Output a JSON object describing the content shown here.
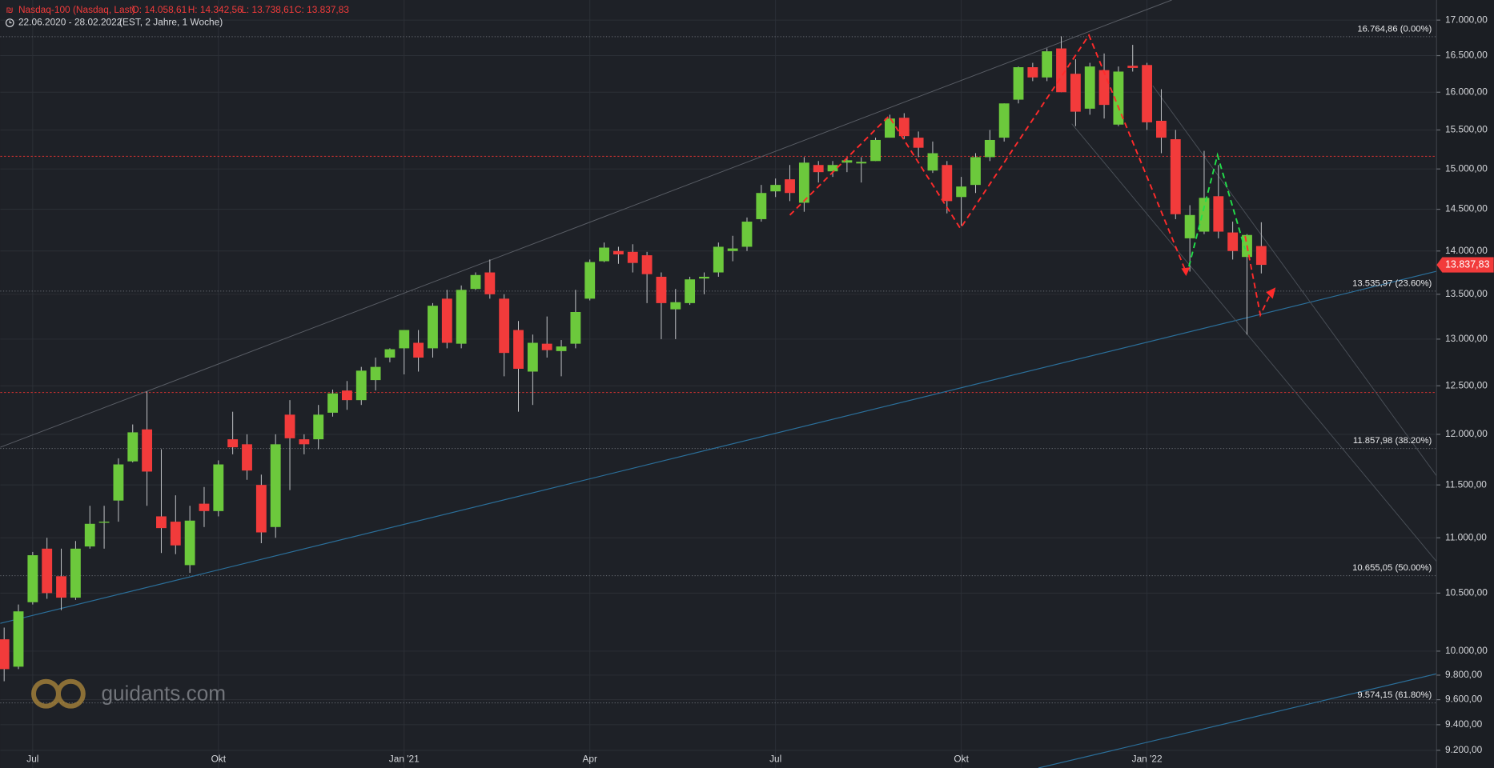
{
  "header": {
    "title": "Nasdaq-100 (Nasdaq, Last)",
    "ohlc": [
      "O: 14.058,61",
      "H: 14.342,56",
      "L: 13.738,61",
      "C: 13.837,83"
    ],
    "range": "22.06.2020 - 28.02.2022",
    "info": "(EST, 2 Jahre, 1 Woche)"
  },
  "watermark": "guidants.com",
  "chart_data": {
    "type": "candlestick",
    "x": [
      0,
      1,
      2,
      3,
      4,
      5,
      6,
      7,
      8,
      9,
      10,
      11,
      12,
      13,
      14,
      15,
      16,
      17,
      18,
      19,
      20,
      21,
      22,
      23,
      24,
      25,
      26,
      27,
      28,
      29,
      30,
      31,
      32,
      33,
      34,
      35,
      36,
      37,
      38,
      39,
      40,
      41,
      42,
      43,
      44,
      45,
      46,
      47,
      48,
      49,
      50,
      51,
      52,
      53,
      54,
      55,
      56,
      57,
      58,
      59,
      60,
      61,
      62,
      63,
      64,
      65,
      66,
      67,
      68,
      69,
      70,
      71,
      72,
      73,
      74,
      75,
      76,
      77,
      78,
      79,
      80,
      81,
      82,
      83,
      84,
      85,
      86,
      87,
      88
    ],
    "open": [
      10100,
      9870,
      10420,
      10900,
      10650,
      10460,
      10920,
      11140,
      11350,
      11730,
      12050,
      11200,
      11150,
      10750,
      11320,
      11250,
      11950,
      11900,
      11500,
      11100,
      12200,
      11950,
      11950,
      12220,
      12450,
      12350,
      12560,
      12800,
      12900,
      12960,
      12900,
      13450,
      12950,
      13560,
      13750,
      13450,
      13100,
      12650,
      12950,
      12870,
      12950,
      13450,
      13880,
      14000,
      13990,
      13950,
      13700,
      13330,
      13400,
      13680,
      13750,
      14000,
      14050,
      14380,
      14720,
      14870,
      14580,
      15050,
      14970,
      15080,
      15070,
      15100,
      15400,
      15660,
      15400,
      14980,
      15050,
      14650,
      14800,
      15150,
      15400,
      15900,
      16340,
      16200,
      16600,
      16250,
      15780,
      16300,
      15570,
      16360,
      16370,
      15620,
      15380,
      14150,
      14230,
      14660,
      14220,
      13930,
      14058.61
    ],
    "high": [
      10200,
      10400,
      10870,
      11000,
      10900,
      10970,
      11300,
      11300,
      11760,
      12100,
      12440,
      11850,
      11400,
      11300,
      11480,
      11740,
      12230,
      12000,
      11600,
      12000,
      12350,
      12000,
      12300,
      12460,
      12550,
      12700,
      12800,
      12900,
      13100,
      13100,
      13400,
      13550,
      13600,
      13750,
      13900,
      13500,
      13200,
      13050,
      13250,
      12990,
      13550,
      13900,
      14100,
      14050,
      14080,
      13990,
      13750,
      13560,
      13700,
      13750,
      14100,
      14180,
      14400,
      14800,
      14880,
      15050,
      15150,
      15100,
      15100,
      15150,
      15150,
      15400,
      15700,
      15720,
      15480,
      15350,
      15100,
      14900,
      15200,
      15500,
      15850,
      16350,
      16400,
      16600,
      16770,
      16450,
      16400,
      16530,
      16350,
      16650,
      16400,
      16040,
      15500,
      14550,
      15230,
      15050,
      14350,
      14200,
      14342.56
    ],
    "low": [
      9750,
      9850,
      10400,
      10450,
      10350,
      10440,
      10900,
      10900,
      11150,
      11720,
      11300,
      10860,
      10850,
      10680,
      11100,
      11200,
      11800,
      11550,
      10950,
      11000,
      11450,
      11800,
      11850,
      12180,
      12250,
      12300,
      12450,
      12750,
      12620,
      12650,
      12800,
      12900,
      12900,
      13550,
      13450,
      12600,
      12230,
      12300,
      12800,
      12600,
      12900,
      13430,
      13870,
      13850,
      13750,
      13400,
      13000,
      13000,
      13380,
      13500,
      13700,
      13880,
      14000,
      14350,
      14650,
      14600,
      14470,
      14830,
      14900,
      14960,
      14830,
      15100,
      15400,
      15380,
      15150,
      14950,
      14450,
      14300,
      14700,
      15100,
      15350,
      15850,
      16150,
      16150,
      16000,
      15550,
      15700,
      15650,
      15550,
      16280,
      15500,
      15200,
      14380,
      13760,
      14200,
      14150,
      13900,
      13050,
      13738.61
    ],
    "close": [
      9850,
      10340,
      10840,
      10500,
      10460,
      10900,
      11130,
      11150,
      11700,
      12020,
      11630,
      11090,
      10930,
      11160,
      11250,
      11700,
      11870,
      11640,
      11050,
      11900,
      11960,
      11900,
      12200,
      12420,
      12350,
      12660,
      12700,
      12890,
      13100,
      12800,
      13370,
      12960,
      13550,
      13720,
      13500,
      12850,
      12680,
      12960,
      12880,
      12920,
      13300,
      13870,
      14040,
      13960,
      13860,
      13730,
      13400,
      13410,
      13670,
      13700,
      14050,
      14030,
      14350,
      14700,
      14800,
      14700,
      15080,
      14960,
      15050,
      15110,
      15090,
      15370,
      15650,
      15420,
      15270,
      15200,
      14600,
      14780,
      15150,
      15370,
      15850,
      16340,
      16200,
      16560,
      16000,
      15740,
      16350,
      15830,
      16280,
      16330,
      15600,
      15400,
      14440,
      14430,
      14640,
      14230,
      14000,
      14190,
      13837.83
    ],
    "up_color": "#6cc93c",
    "down_color": "#f23b3b",
    "xlim": [
      -0.27,
      100.27
    ],
    "xticks": [
      {
        "value": 2,
        "label": "Jul"
      },
      {
        "value": 15,
        "label": "Okt"
      },
      {
        "value": 28,
        "label": "Jan '21"
      },
      {
        "value": 41,
        "label": "Apr"
      },
      {
        "value": 54,
        "label": "Jul"
      },
      {
        "value": 67,
        "label": "Okt"
      },
      {
        "value": 80,
        "label": "Jan '22"
      }
    ],
    "log_scale": true,
    "ylim": [
      9064,
      17290
    ],
    "yticks": [
      {
        "value": 17000,
        "label": "17.000,00"
      },
      {
        "value": 16500,
        "label": "16.500,00"
      },
      {
        "value": 16000,
        "label": "16.000,00"
      },
      {
        "value": 15500,
        "label": "15.500,00"
      },
      {
        "value": 15000,
        "label": "15.000,00"
      },
      {
        "value": 14500,
        "label": "14.500,00"
      },
      {
        "value": 14000,
        "label": "14.000,00"
      },
      {
        "value": 13500,
        "label": "13.500,00"
      },
      {
        "value": 13000,
        "label": "13.000,00"
      },
      {
        "value": 12500,
        "label": "12.500,00"
      },
      {
        "value": 12000,
        "label": "12.000,00"
      },
      {
        "value": 11500,
        "label": "11.500,00"
      },
      {
        "value": 11000,
        "label": "11.000,00"
      },
      {
        "value": 10500,
        "label": "10.500,00"
      },
      {
        "value": 10000,
        "label": "10.000,00"
      },
      {
        "value": 9800,
        "label": "9.800,00"
      },
      {
        "value": 9600,
        "label": "9.600,00"
      },
      {
        "value": 9400,
        "label": "9.400,00"
      },
      {
        "value": 9200,
        "label": "9.200,00"
      }
    ],
    "grid": true,
    "fib_levels": [
      {
        "value": 16764.86,
        "label": "16.764,86 (0.00%)"
      },
      {
        "value": 13535.97,
        "label": "13.535,97 (23.60%)"
      },
      {
        "value": 11857.98,
        "label": "11.857,98 (38.20%)"
      },
      {
        "value": 10655.05,
        "label": "10.655,05 (50.00%)"
      },
      {
        "value": 9574.15,
        "label": "9.574,15 (61.80%)"
      }
    ],
    "horizontal_lines": [
      15160,
      12430
    ],
    "last_price": {
      "value": 13837.83,
      "label": "13.837,83"
    }
  }
}
